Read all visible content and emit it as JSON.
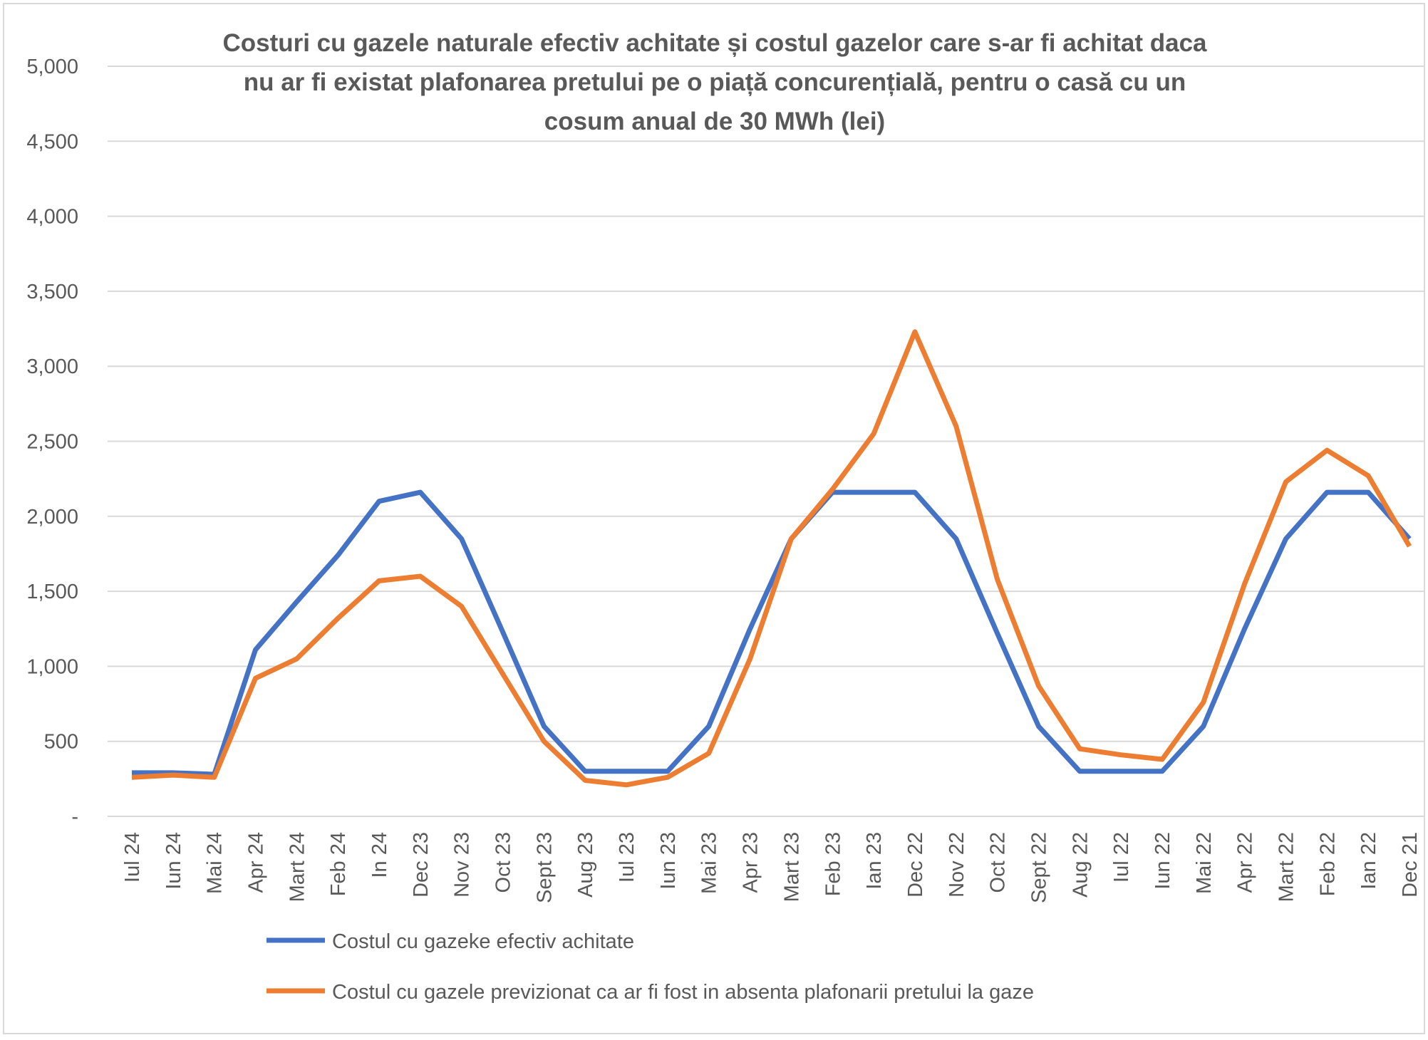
{
  "chart_data": {
    "type": "line",
    "title": [
      "Costuri cu gazele naturale efectiv achitate și costul gazelor care s-ar fi achitat daca",
      "nu ar fi existat plafonarea pretului  pe o piață concurențială, pentru o casă cu un",
      "cosum anual de 30 MWh (lei)"
    ],
    "xlabel": "",
    "ylabel": "",
    "ylim": [
      0,
      5000
    ],
    "yticks": [
      0,
      500,
      1000,
      1500,
      2000,
      2500,
      3000,
      3500,
      4000,
      4500,
      5000
    ],
    "ytick_labels": [
      "-",
      "500",
      "1,000",
      "1,500",
      "2,000",
      "2,500",
      "3,000",
      "3,500",
      "4,000",
      "4,500",
      "5,000"
    ],
    "grid": true,
    "legend_position": "bottom",
    "categories": [
      "Iul 24",
      "Iun 24",
      "Mai 24",
      "Apr 24",
      "Mart 24",
      "Feb 24",
      "In 24",
      "Dec 23",
      "Nov 23",
      "Oct 23",
      "Sept 23",
      "Aug 23",
      "Iul 23",
      "Iun 23",
      "Mai 23",
      "Apr 23",
      "Mart 23",
      "Feb 23",
      "Ian 23",
      "Dec 22",
      "Nov 22",
      "Oct 22",
      "Sept 22",
      "Aug 22",
      "Iul 22",
      "Iun 22",
      "Mai 22",
      "Apr 22",
      "Mart 22",
      "Feb 22",
      "Ian 22",
      "Dec 21"
    ],
    "series": [
      {
        "name": "Costul cu gazeke efectiv achitate",
        "color": "#4472C4",
        "values": [
          290,
          290,
          280,
          1110,
          1430,
          1740,
          2100,
          2160,
          1850,
          1230,
          600,
          300,
          300,
          300,
          600,
          1250,
          1850,
          2160,
          2160,
          2160,
          1850,
          1220,
          600,
          300,
          300,
          300,
          600,
          1250,
          1850,
          2160,
          2160,
          1850
        ]
      },
      {
        "name": "Costul cu gazele previzionat ca ar fi fost in absenta plafonarii pretului la gaze",
        "color": "#ED7D31",
        "values": [
          260,
          275,
          260,
          920,
          1050,
          1320,
          1570,
          1600,
          1400,
          950,
          500,
          240,
          210,
          260,
          420,
          1050,
          1850,
          2180,
          2550,
          3230,
          2600,
          1580,
          870,
          450,
          410,
          380,
          760,
          1550,
          2230,
          2440,
          2270,
          1800
        ]
      }
    ]
  }
}
